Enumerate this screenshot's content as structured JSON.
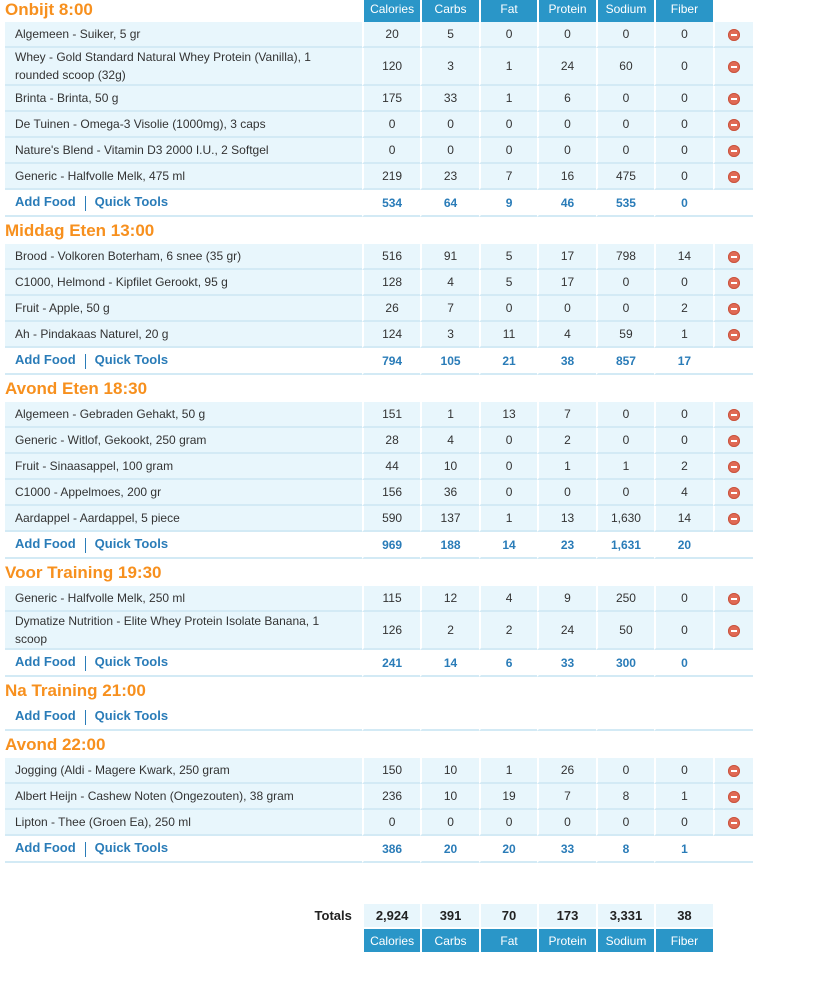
{
  "columns": [
    "Calories",
    "Carbs",
    "Fat",
    "Protein",
    "Sodium",
    "Fiber"
  ],
  "add_food_label": "Add Food",
  "quick_tools_label": "Quick Tools",
  "colors": {
    "accent_orange": "#f7901e",
    "header_blue": "#2a96c8",
    "row_bg": "#e8f6fc",
    "link_blue": "#2a7cb8"
  },
  "delete_icon": "minus-circle-icon",
  "meals": [
    {
      "title": "Onbijt 8:00",
      "foods": [
        {
          "name": "Algemeen - Suiker, 5 gr",
          "values": [
            "20",
            "5",
            "0",
            "0",
            "0",
            "0"
          ]
        },
        {
          "name": "Whey - Gold Standard Natural Whey Protein (Vanilla), 1 rounded scoop (32g)",
          "values": [
            "120",
            "3",
            "1",
            "24",
            "60",
            "0"
          ]
        },
        {
          "name": "Brinta - Brinta, 50 g",
          "values": [
            "175",
            "33",
            "1",
            "6",
            "0",
            "0"
          ]
        },
        {
          "name": "De Tuinen - Omega-3 Visolie (1000mg), 3 caps",
          "values": [
            "0",
            "0",
            "0",
            "0",
            "0",
            "0"
          ]
        },
        {
          "name": "Nature's Blend - Vitamin D3 2000 I.U., 2 Softgel",
          "values": [
            "0",
            "0",
            "0",
            "0",
            "0",
            "0"
          ]
        },
        {
          "name": "Generic - Halfvolle Melk, 475 ml",
          "values": [
            "219",
            "23",
            "7",
            "16",
            "475",
            "0"
          ]
        }
      ],
      "totals": [
        "534",
        "64",
        "9",
        "46",
        "535",
        "0"
      ]
    },
    {
      "title": "Middag Eten 13:00",
      "foods": [
        {
          "name": "Brood - Volkoren Boterham, 6 snee (35 gr)",
          "values": [
            "516",
            "91",
            "5",
            "17",
            "798",
            "14"
          ]
        },
        {
          "name": "C1000, Helmond - Kipfilet Gerookt, 95 g",
          "values": [
            "128",
            "4",
            "5",
            "17",
            "0",
            "0"
          ]
        },
        {
          "name": "Fruit - Apple, 50 g",
          "values": [
            "26",
            "7",
            "0",
            "0",
            "0",
            "2"
          ]
        },
        {
          "name": "Ah - Pindakaas Naturel, 20 g",
          "values": [
            "124",
            "3",
            "11",
            "4",
            "59",
            "1"
          ]
        }
      ],
      "totals": [
        "794",
        "105",
        "21",
        "38",
        "857",
        "17"
      ]
    },
    {
      "title": "Avond Eten 18:30",
      "foods": [
        {
          "name": "Algemeen - Gebraden Gehakt, 50 g",
          "values": [
            "151",
            "1",
            "13",
            "7",
            "0",
            "0"
          ]
        },
        {
          "name": "Generic - Witlof, Gekookt, 250 gram",
          "values": [
            "28",
            "4",
            "0",
            "2",
            "0",
            "0"
          ]
        },
        {
          "name": "Fruit - Sinaasappel, 100 gram",
          "values": [
            "44",
            "10",
            "0",
            "1",
            "1",
            "2"
          ]
        },
        {
          "name": "C1000 - Appelmoes, 200 gr",
          "values": [
            "156",
            "36",
            "0",
            "0",
            "0",
            "4"
          ]
        },
        {
          "name": "Aardappel - Aardappel, 5 piece",
          "values": [
            "590",
            "137",
            "1",
            "13",
            "1,630",
            "14"
          ]
        }
      ],
      "totals": [
        "969",
        "188",
        "14",
        "23",
        "1,631",
        "20"
      ]
    },
    {
      "title": "Voor Training 19:30",
      "foods": [
        {
          "name": "Generic - Halfvolle Melk, 250 ml",
          "values": [
            "115",
            "12",
            "4",
            "9",
            "250",
            "0"
          ]
        },
        {
          "name": "Dymatize Nutrition - Elite Whey Protein Isolate Banana, 1 scoop",
          "values": [
            "126",
            "2",
            "2",
            "24",
            "50",
            "0"
          ]
        }
      ],
      "totals": [
        "241",
        "14",
        "6",
        "33",
        "300",
        "0"
      ]
    },
    {
      "title": "Na Training 21:00",
      "foods": [],
      "totals": [
        "",
        "",
        "",
        "",
        "",
        ""
      ]
    },
    {
      "title": "Avond 22:00",
      "foods": [
        {
          "name": "Jogging (Aldi - Magere Kwark, 250 gram",
          "values": [
            "150",
            "10",
            "1",
            "26",
            "0",
            "0"
          ]
        },
        {
          "name": "Albert Heijn - Cashew Noten (Ongezouten), 38 gram",
          "values": [
            "236",
            "10",
            "19",
            "7",
            "8",
            "1"
          ]
        },
        {
          "name": "Lipton - Thee (Groen Ea), 250 ml",
          "values": [
            "0",
            "0",
            "0",
            "0",
            "0",
            "0"
          ]
        }
      ],
      "totals": [
        "386",
        "20",
        "20",
        "33",
        "8",
        "1"
      ]
    }
  ],
  "daily_totals": {
    "label": "Totals",
    "values": [
      "2,924",
      "391",
      "70",
      "173",
      "3,331",
      "38"
    ]
  }
}
